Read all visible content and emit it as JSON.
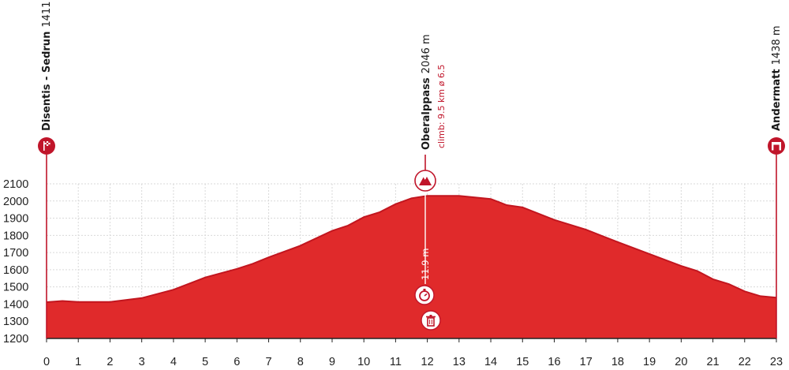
{
  "colors": {
    "profile_fill": "#e02a2b",
    "profile_stroke": "#c2161f",
    "marker": "#c0152a",
    "grid": "#d9d9d9",
    "axis": "#222222"
  },
  "waypoints": {
    "start": {
      "name": "Disentis - Sedrun",
      "altitude": "1411 m",
      "icon": "start-flag-icon",
      "km": 0
    },
    "climb": {
      "name": "Oberalppass",
      "altitude": "2046 m",
      "detail": "climb: 9.5 km ø 6.5",
      "icon": "mountain-climb-icon",
      "km": 11.8
    },
    "finish": {
      "name": "Andermatt",
      "altitude": "1438 m",
      "icon": "finish-arch-icon",
      "km": 23
    }
  },
  "inline_markers": {
    "km_label": "11.9 m",
    "sprint": {
      "icon": "stopwatch-icon",
      "km": 11.9
    },
    "feed": {
      "icon": "trash-bin-icon",
      "km": 12.0
    }
  },
  "chart_data": {
    "type": "area",
    "title": "",
    "xlabel": "",
    "ylabel": "",
    "xlim": [
      0,
      23
    ],
    "ylim": [
      1200,
      2100
    ],
    "x_ticks": [
      "0",
      "1",
      "2",
      "3",
      "4",
      "5",
      "6",
      "7",
      "8",
      "9",
      "10",
      "11",
      "12",
      "13",
      "14",
      "15",
      "16",
      "17",
      "18",
      "19",
      "20",
      "21",
      "22",
      "23"
    ],
    "y_ticks": [
      "1200",
      "1300",
      "1400",
      "1500",
      "1600",
      "1700",
      "1800",
      "1900",
      "2000",
      "2100"
    ],
    "grid": true,
    "series": [
      {
        "x": [
          0,
          0.5,
          1,
          2,
          3,
          4,
          5,
          6,
          6.5,
          7,
          8,
          9,
          9.5,
          10,
          10.5,
          11,
          11.5,
          12,
          12.5,
          13,
          14,
          14.5,
          15,
          16,
          17,
          18,
          19,
          20,
          20.5,
          21,
          21.5,
          22,
          22.5,
          23
        ],
        "y": [
          1411,
          1418,
          1412,
          1412,
          1435,
          1484,
          1555,
          1605,
          1635,
          1672,
          1740,
          1827,
          1857,
          1906,
          1935,
          1982,
          2016,
          2030,
          2030,
          2030,
          2012,
          1976,
          1963,
          1890,
          1833,
          1761,
          1692,
          1622,
          1593,
          1545,
          1517,
          1474,
          1446,
          1438
        ]
      }
    ]
  }
}
